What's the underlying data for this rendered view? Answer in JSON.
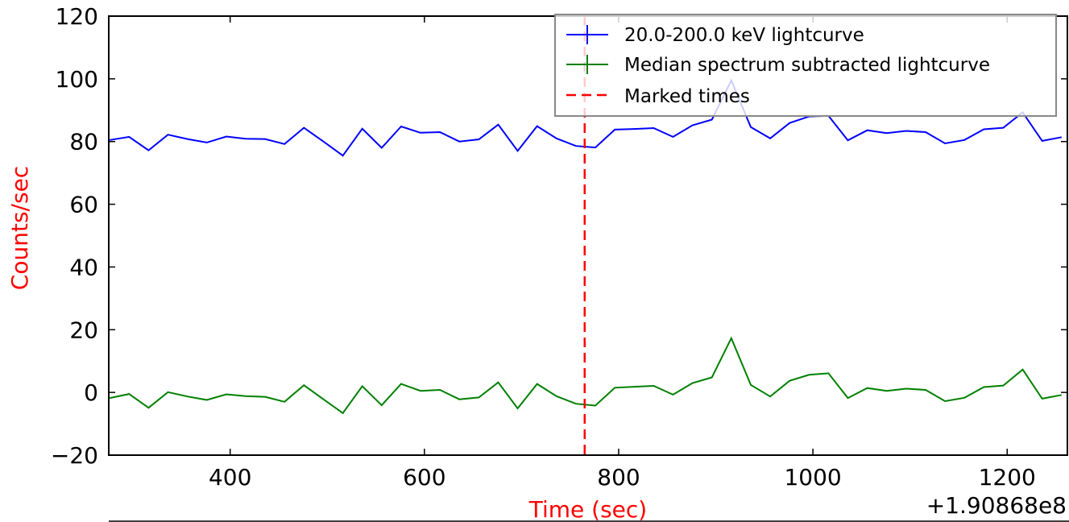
{
  "chart_data": {
    "type": "line",
    "xlabel": "Time (sec)",
    "ylabel": "Counts/sec",
    "label_color": "#ff0000",
    "x_offset_text": "+1.90868e8",
    "xlim": [
      275,
      1262
    ],
    "ylim": [
      -20,
      120
    ],
    "xticks": [
      400,
      600,
      800,
      1000,
      1200
    ],
    "yticks": [
      -20,
      0,
      20,
      40,
      60,
      80,
      100,
      120
    ],
    "x": [
      276,
      296,
      316,
      336,
      356,
      376,
      396,
      416,
      436,
      456,
      476,
      496,
      516,
      536,
      556,
      576,
      596,
      616,
      636,
      656,
      676,
      696,
      716,
      736,
      756,
      776,
      796,
      816,
      836,
      856,
      876,
      896,
      916,
      936,
      956,
      976,
      996,
      1016,
      1036,
      1056,
      1076,
      1096,
      1116,
      1136,
      1156,
      1176,
      1196,
      1216,
      1236,
      1256
    ],
    "series": [
      {
        "name": "20.0-200.0 keV lightcurve",
        "color": "#0000ff",
        "values": [
          80.5,
          81.5,
          77.2,
          82.2,
          80.8,
          79.7,
          81.6,
          80.9,
          80.8,
          79.2,
          84.4,
          80.0,
          75.5,
          84.1,
          78.0,
          84.8,
          82.8,
          83.0,
          80.0,
          80.7,
          85.4,
          77.0,
          84.9,
          81.0,
          78.6,
          78.1,
          83.8,
          84.0,
          84.3,
          81.5,
          85.2,
          87.0,
          99.5,
          84.6,
          81.0,
          85.9,
          88.0,
          88.2,
          80.4,
          83.6,
          82.7,
          83.4,
          83.0,
          79.4,
          80.5,
          83.9,
          84.4,
          89.3,
          80.2,
          81.4
        ]
      },
      {
        "name": "Median spectrum subtracted lightcurve",
        "color": "#008000",
        "values": [
          -1.8,
          -0.5,
          -4.9,
          0.1,
          -1.3,
          -2.4,
          -0.6,
          -1.2,
          -1.4,
          -3.0,
          2.3,
          -2.2,
          -6.6,
          2.0,
          -4.1,
          2.7,
          0.5,
          0.8,
          -2.2,
          -1.6,
          3.2,
          -5.1,
          2.7,
          -1.2,
          -3.6,
          -4.2,
          1.5,
          1.8,
          2.1,
          -0.7,
          3.0,
          4.8,
          17.3,
          2.4,
          -1.3,
          3.7,
          5.6,
          6.1,
          -1.8,
          1.4,
          0.5,
          1.2,
          0.8,
          -2.8,
          -1.7,
          1.7,
          2.2,
          7.3,
          -2.0,
          -0.8
        ]
      }
    ],
    "marked_times": [
      765
    ],
    "marked_label": "Marked times",
    "marked_color": "#ff0000",
    "legend_position": "top-right",
    "grid": false
  }
}
